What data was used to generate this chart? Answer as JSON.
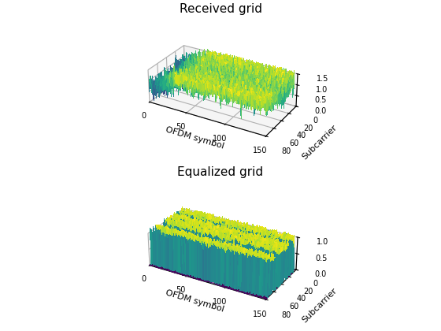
{
  "title1": "Received grid",
  "title2": "Equalized grid",
  "xlabel": "OFDM symbol",
  "ylabel": "Subcarrier",
  "n_subcarriers": 72,
  "n_symbols": 140,
  "zlim1": [
    0,
    1.5
  ],
  "zlim2": [
    0,
    1.0
  ],
  "zticks1": [
    0,
    0.5,
    1.0,
    1.5
  ],
  "zticks2": [
    0,
    0.5,
    1.0
  ],
  "colormap": "viridis",
  "seed": 42,
  "figsize": [
    5.6,
    4.2
  ],
  "dpi": 100,
  "elev": 28,
  "azim": -60
}
